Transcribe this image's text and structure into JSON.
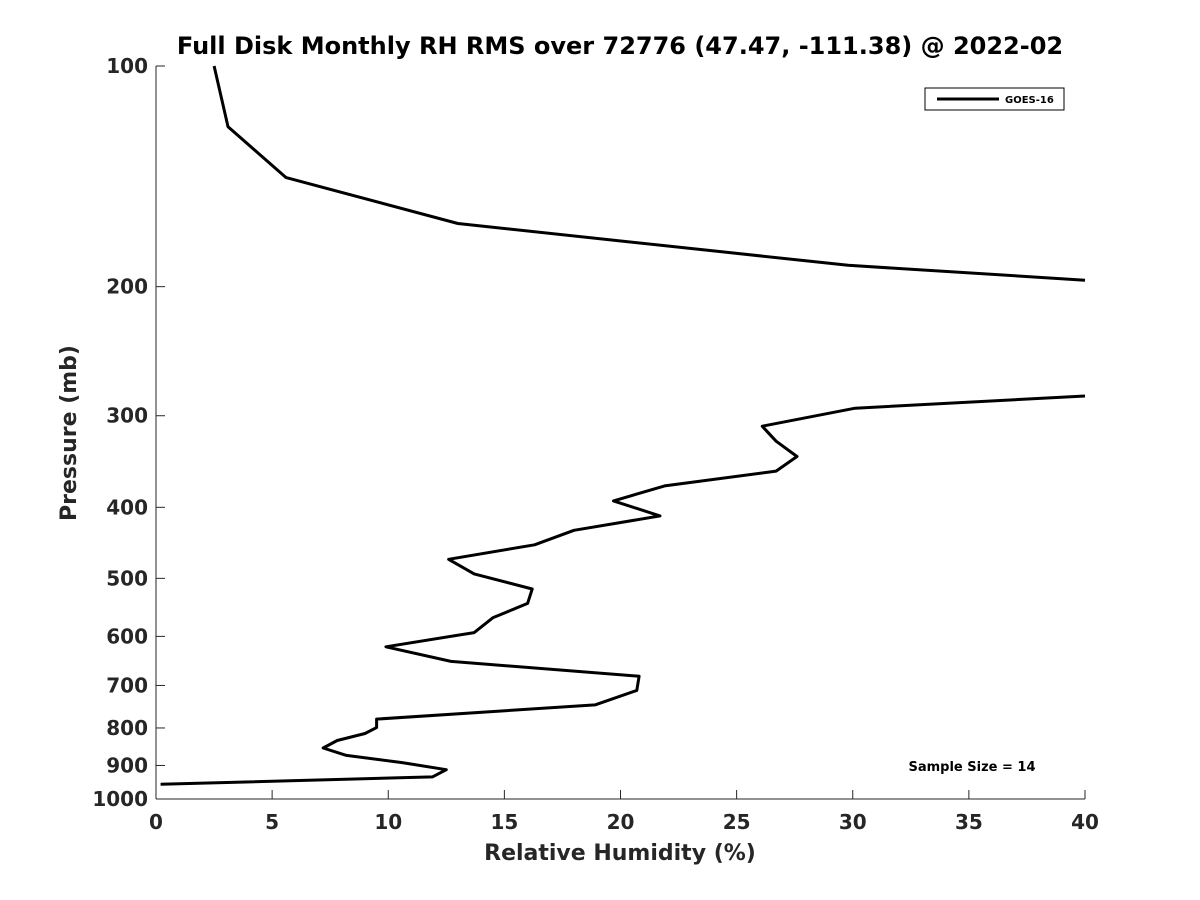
{
  "chart_data": {
    "type": "line",
    "title": "Full Disk Monthly RH RMS over 72776 (47.47, -111.38) @ 2022-02",
    "xlabel": "Relative Humidity (%)",
    "ylabel": "Pressure (mb)",
    "xlim": [
      0,
      40
    ],
    "ylim": [
      100,
      1000
    ],
    "yscale": "log",
    "yreversed": true,
    "grid": false,
    "xticks": [
      0,
      5,
      10,
      15,
      20,
      25,
      30,
      35,
      40
    ],
    "xtick_labels": [
      "0",
      "5",
      "10",
      "15",
      "20",
      "25",
      "30",
      "35",
      "40"
    ],
    "yticks": [
      100,
      200,
      300,
      400,
      500,
      600,
      700,
      800,
      900,
      1000
    ],
    "ytick_labels": [
      "100",
      "200",
      "300",
      "400",
      "500",
      "600",
      "700",
      "800",
      "900",
      "1000"
    ],
    "legend_position": "top-right",
    "series": [
      {
        "name": "GOES-16",
        "color": "#000000",
        "points": [
          [
            2.5,
            100
          ],
          [
            3.1,
            121
          ],
          [
            5.6,
            142
          ],
          [
            13.0,
            164
          ],
          [
            29.8,
            187
          ],
          [
            40.0,
            196
          ],
          [
            null,
            null
          ],
          [
            40.0,
            282
          ],
          [
            30.1,
            293
          ],
          [
            26.1,
            310
          ],
          [
            26.7,
            325
          ],
          [
            27.6,
            341
          ],
          [
            26.7,
            357
          ],
          [
            21.9,
            374
          ],
          [
            19.7,
            392
          ],
          [
            21.7,
            411
          ],
          [
            18.0,
            430
          ],
          [
            16.3,
            450
          ],
          [
            12.6,
            471
          ],
          [
            13.7,
            493
          ],
          [
            16.2,
            517
          ],
          [
            16.0,
            541
          ],
          [
            14.5,
            566
          ],
          [
            13.7,
            593
          ],
          [
            9.9,
            620
          ],
          [
            12.7,
            649
          ],
          [
            20.8,
            680
          ],
          [
            20.7,
            711
          ],
          [
            18.9,
            744
          ],
          [
            9.5,
            778
          ],
          [
            9.5,
            799
          ],
          [
            9.0,
            814
          ],
          [
            7.8,
            832
          ],
          [
            7.2,
            852
          ],
          [
            8.2,
            872
          ],
          [
            10.6,
            892
          ],
          [
            12.5,
            912
          ],
          [
            11.9,
            933
          ],
          [
            0.2,
            955
          ]
        ]
      }
    ],
    "annotations": [
      "Sample Size = 14"
    ]
  }
}
